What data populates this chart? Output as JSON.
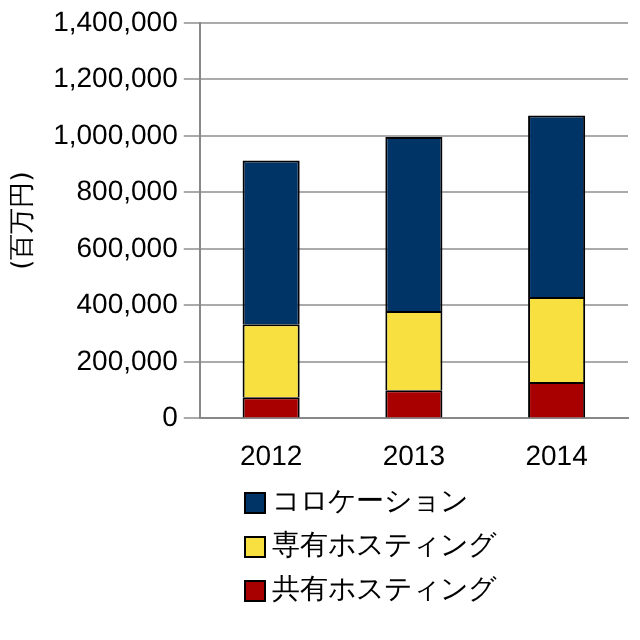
{
  "chart_data": {
    "type": "bar",
    "stacked": true,
    "ylabel": "(百万円)",
    "categories": [
      "2012",
      "2013",
      "2014"
    ],
    "series": [
      {
        "name": "共有ホスティング",
        "color": "#a80000",
        "values": [
          75000,
          100000,
          129000
        ]
      },
      {
        "name": "専有ホスティング",
        "color": "#f8e040",
        "values": [
          258000,
          280000,
          301000
        ]
      },
      {
        "name": "コロケーション",
        "color": "#003366",
        "values": [
          580000,
          616000,
          642000
        ]
      }
    ],
    "ylim": [
      0,
      1400000
    ],
    "yticks": [
      0,
      {
        "value": 200000,
        "label": "200,000"
      },
      {
        "value": 400000,
        "label": "400,000"
      },
      {
        "value": 600000,
        "label": "600,000"
      },
      {
        "value": 800000,
        "label": "800,000"
      },
      {
        "value": 1000000,
        "label": "1,000,000"
      },
      {
        "value": 1200000,
        "label": "1,200,000"
      },
      {
        "value": 1400000,
        "label": "1,400,000"
      }
    ],
    "grid": "y",
    "legend": "bottom"
  }
}
